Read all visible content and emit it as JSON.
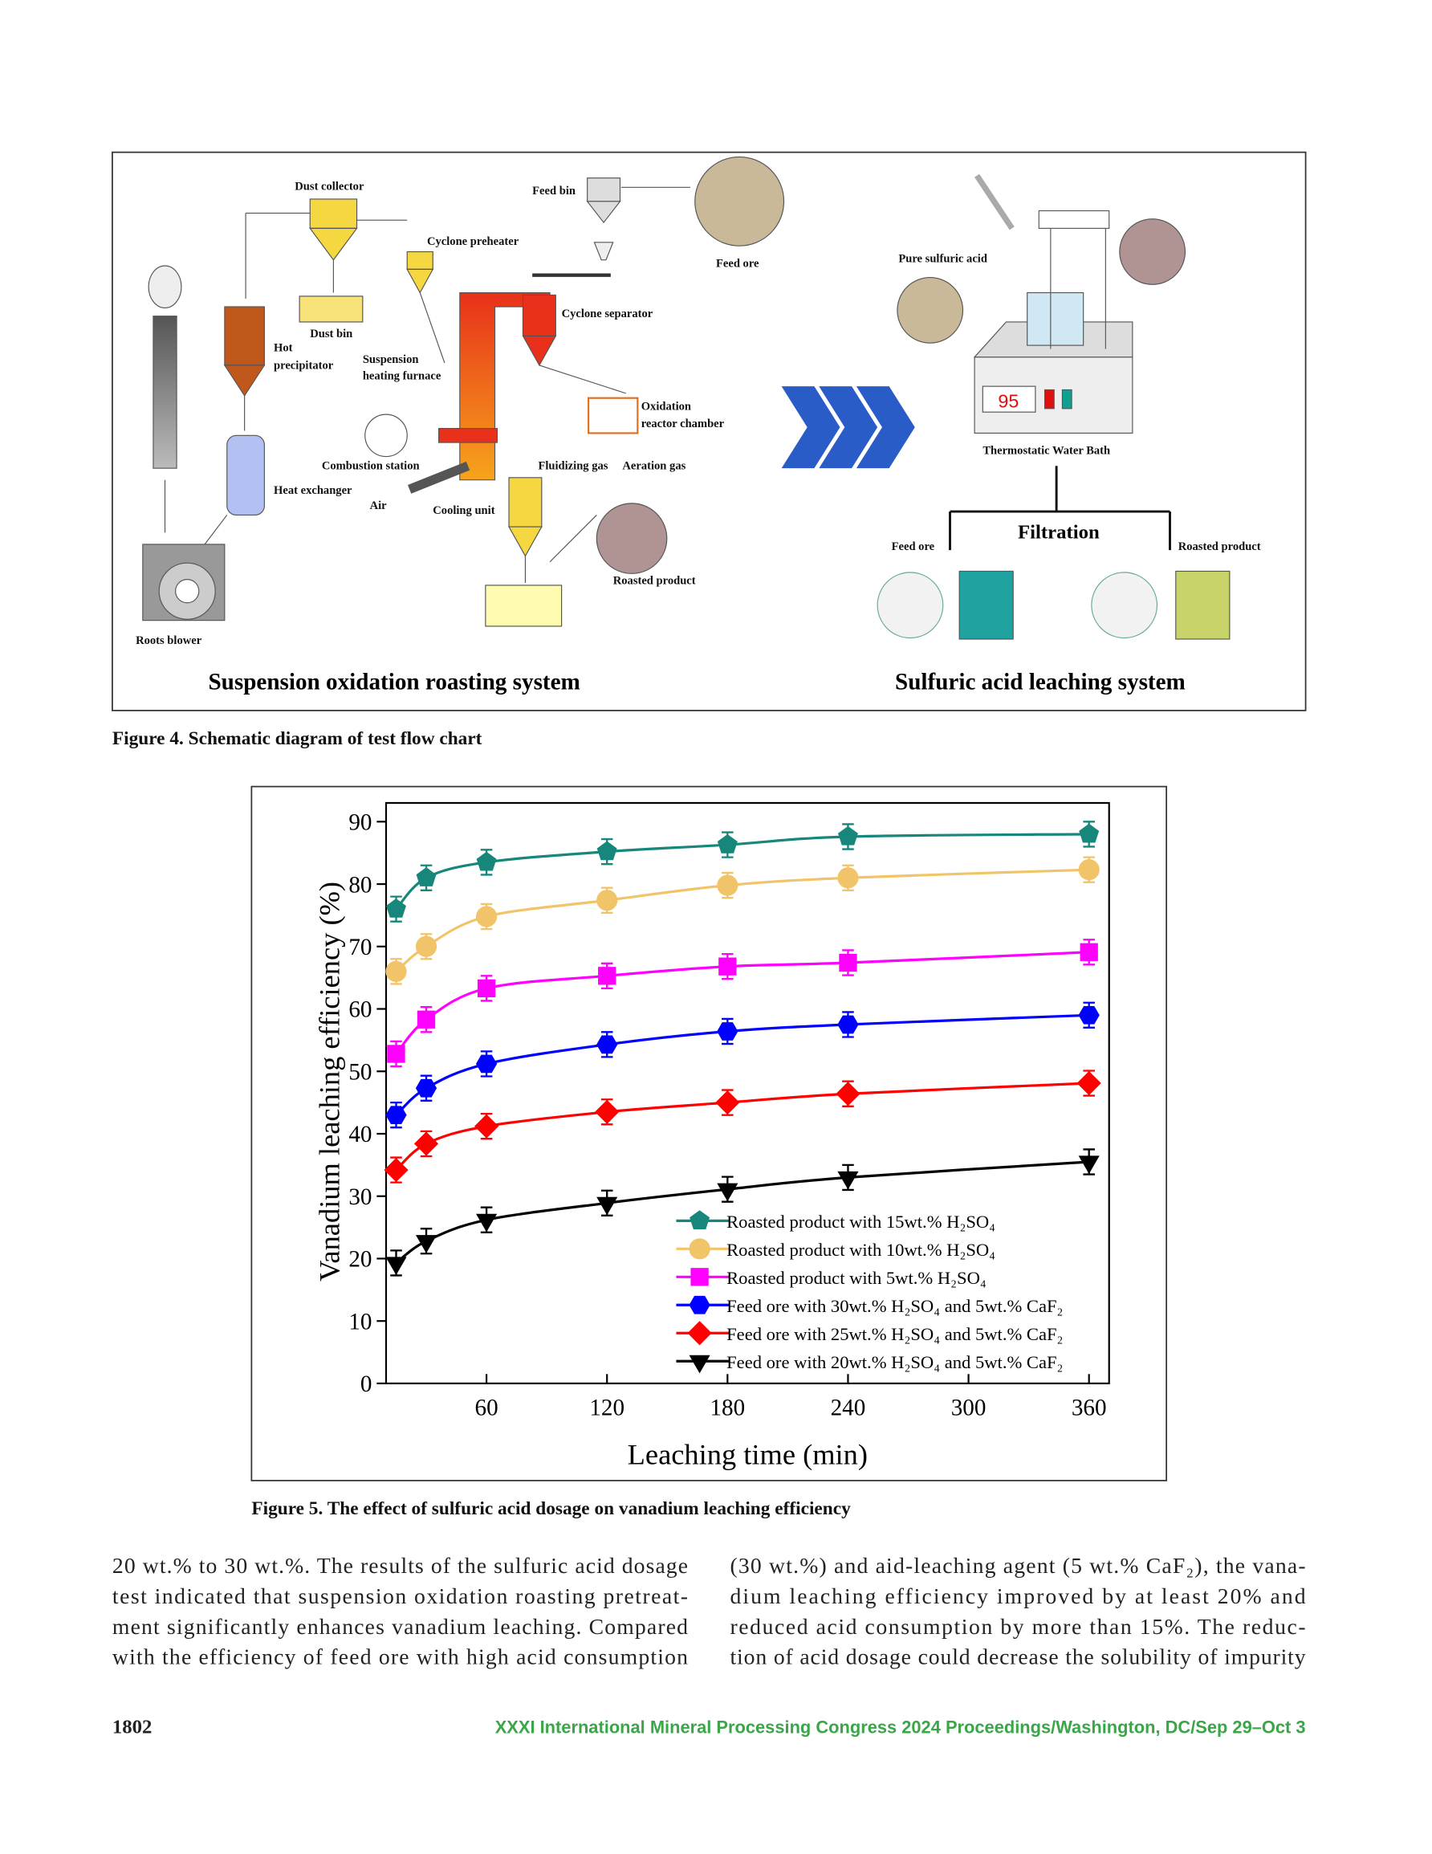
{
  "figure4": {
    "labels": [
      "Dust collector",
      "Feed bin",
      "Cyclone preheater",
      "Feed ore",
      "Dust bin",
      "Cyclone separator",
      "Hot",
      "precipitator",
      "Suspension",
      "heating furnace",
      "Oxidation",
      "reactor  chamber",
      "Combustion station",
      "Fluidizing gas",
      "Aeration gas",
      "Heat  exchanger",
      "Air",
      "Cooling unit",
      "Roasted product",
      "Roots blower",
      "Suspension oxidation roasting system",
      "Pure sulfuric acid",
      "95",
      "Thermostatic Water Bath",
      "Filtration",
      "Feed ore",
      "Roasted product",
      "Sulfuric acid leaching system"
    ],
    "caption": "Figure 4.  Schematic diagram of test flow chart"
  },
  "chart_data": {
    "type": "line",
    "x_label": "Leaching time (min)",
    "y_label": "Vanadium leaching efficiency (%)",
    "x": [
      15,
      30,
      60,
      120,
      180,
      240,
      360
    ],
    "xlim": [
      10,
      370
    ],
    "xticks": [
      60,
      120,
      180,
      240,
      300,
      360
    ],
    "ylim": [
      0,
      93
    ],
    "yticks": [
      0,
      10,
      20,
      30,
      40,
      50,
      60,
      70,
      80,
      90
    ],
    "series": [
      {
        "name": "Roasted product with 15wt.% H₂SO₄",
        "color": "#16877a",
        "marker": "pentagon",
        "values": [
          76,
          81,
          83.5,
          85.2,
          86.3,
          87.6,
          88
        ],
        "errors": [
          2,
          2,
          2,
          2,
          2,
          2,
          2
        ]
      },
      {
        "name": "Roasted product with 10wt.% H₂SO₄",
        "color": "#f2c46a",
        "marker": "circle",
        "values": [
          66,
          70,
          74.8,
          77.4,
          79.8,
          81,
          82.3
        ],
        "errors": [
          2,
          2,
          2,
          2,
          2,
          2,
          2
        ]
      },
      {
        "name": "Roasted product with 5wt.% H₂SO₄",
        "color": "#ff00ff",
        "marker": "square",
        "values": [
          52.8,
          58.3,
          63.3,
          65.3,
          66.8,
          67.4,
          69.1
        ],
        "errors": [
          2,
          2,
          2,
          2,
          2,
          2,
          2
        ]
      },
      {
        "name": "Feed ore with 30wt.% H₂SO₄ and 5wt.% CaF₂",
        "color": "#0000ff",
        "marker": "hexagon",
        "values": [
          43,
          47.3,
          51.2,
          54.3,
          56.4,
          57.5,
          59
        ],
        "errors": [
          2,
          2,
          2,
          2,
          2,
          2,
          2
        ]
      },
      {
        "name": "Feed ore with 25wt.% H₂SO₄ and 5wt.% CaF₂",
        "color": "#ff0000",
        "marker": "diamond",
        "values": [
          34.2,
          38.4,
          41.2,
          43.5,
          45,
          46.4,
          48.1
        ],
        "errors": [
          2,
          2,
          2,
          2,
          2,
          2,
          2
        ]
      },
      {
        "name": "Feed ore with 20wt.% H₂SO₄ and 5wt.% CaF₂",
        "color": "#000000",
        "marker": "triangle-down",
        "values": [
          19.3,
          22.8,
          26.2,
          28.9,
          31.1,
          33,
          35.5
        ],
        "errors": [
          2,
          2,
          2,
          2,
          2,
          2,
          2
        ]
      }
    ],
    "legend": "lower-right",
    "caption": "Figure 5.  The effect of sulfuric acid dosage on vanadium leaching efficiency"
  },
  "body": {
    "left": [
      "20 wt.% to 30 wt.%. The results of the sulfuric acid dosage",
      "test indicated that suspension oxidation roasting pretreat-",
      "ment significantly enhances vanadium leaching. Compared",
      "with the efficiency of feed ore with high acid consumption"
    ],
    "right": [
      "(30 wt.%) and aid-leaching agent (5 wt.% CaF₂), the vana-",
      "dium leaching efficiency improved by at least 20% and",
      "reduced acid consumption by more than 15%. The reduc-",
      "tion of acid dosage could decrease the solubility of impurity"
    ]
  },
  "footer": {
    "page": "1802",
    "journal": "XXXI International Mineral Processing Congress 2024 Proceedings/Washington, DC/Sep 29–Oct 3"
  }
}
